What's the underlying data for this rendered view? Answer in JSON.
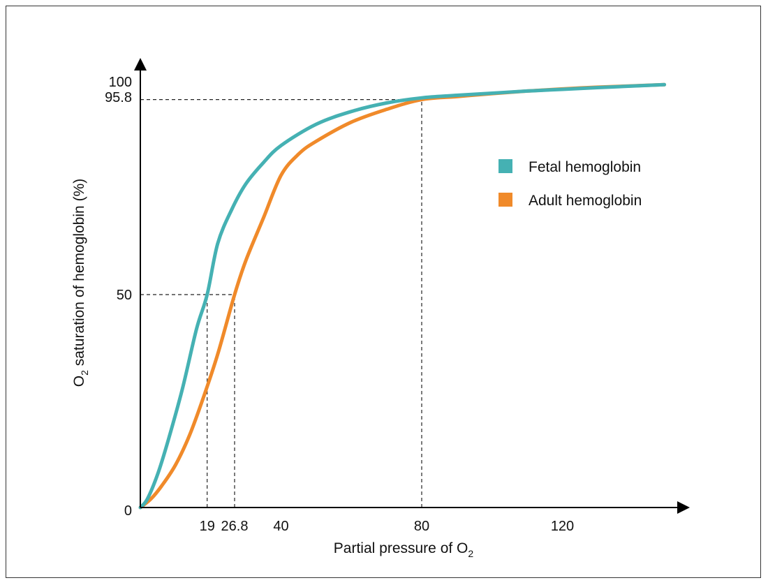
{
  "chart_data": {
    "type": "line",
    "title": "",
    "xlabel": "Partial pressure of O",
    "xlabel_subscript": "2",
    "ylabel_prefix": "O",
    "ylabel_subscript": "2",
    "ylabel_suffix": " saturation of hemoglobin (%)",
    "xlim": [
      0,
      150
    ],
    "ylim": [
      0,
      100
    ],
    "x_ticks": [
      19,
      26.8,
      40,
      80,
      120
    ],
    "y_ticks": [
      0,
      50,
      95.8,
      100
    ],
    "grid": false,
    "legend_position": "right",
    "series": [
      {
        "name": "Fetal hemoglobin",
        "color": "#45b1b3",
        "x": [
          0,
          2,
          5,
          8,
          12,
          16,
          19,
          22,
          26,
          30,
          35,
          40,
          50,
          60,
          70,
          80,
          90,
          100,
          110,
          120,
          130,
          149
        ],
        "y": [
          0,
          2,
          8,
          16,
          28,
          42,
          50,
          62,
          70,
          76,
          81,
          85,
          90,
          93,
          95,
          96.2,
          96.8,
          97.3,
          97.8,
          98.2,
          98.6,
          99.3
        ]
      },
      {
        "name": "Adult hemoglobin",
        "color": "#f08a2a",
        "x": [
          0,
          3,
          6,
          10,
          14,
          18,
          22,
          26.8,
          30,
          35,
          40,
          45,
          50,
          60,
          70,
          80,
          90,
          100,
          110,
          120,
          130,
          149
        ],
        "y": [
          0,
          2,
          5,
          10,
          17,
          26,
          36,
          50,
          58,
          68,
          78,
          83,
          86,
          90.5,
          93.5,
          95.8,
          96.5,
          97.2,
          97.8,
          98.3,
          98.7,
          99.3
        ]
      }
    ],
    "reference_lines": [
      {
        "x": 19,
        "y": 50
      },
      {
        "x": 26.8,
        "y": 50
      },
      {
        "x": 80,
        "y": 95.8
      }
    ]
  }
}
